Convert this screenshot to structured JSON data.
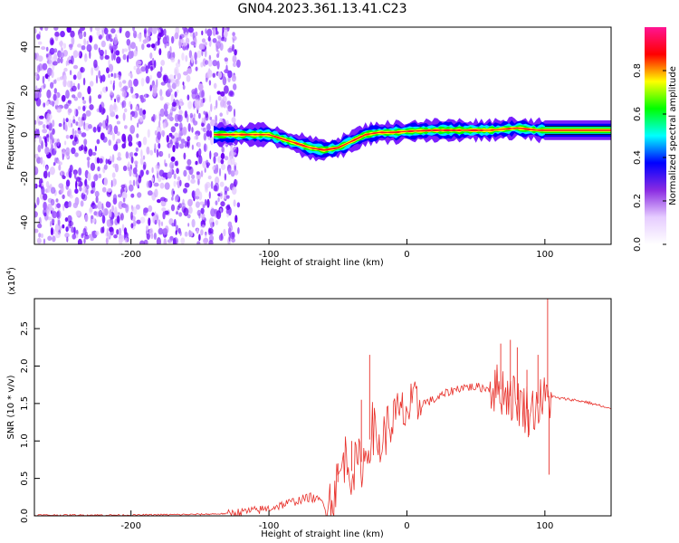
{
  "title": "GN04.2023.361.13.41.C23",
  "chart_data": [
    {
      "type": "heatmap",
      "title": "GN04.2023.361.13.41.C23",
      "xlabel": "Height of straight line (km)",
      "ylabel": "Frequency (Hz)",
      "xlim": [
        -270,
        148
      ],
      "ylim": [
        -50,
        49
      ],
      "xticks": [
        -200,
        -100,
        0,
        100
      ],
      "yticks": [
        -40,
        -20,
        0,
        20,
        40
      ],
      "grid": false,
      "noise_region_x": [
        -270,
        -122
      ],
      "colorbar": {
        "label": "Normalized spectral amplitude",
        "range": [
          0,
          1
        ],
        "ticks": [
          "0.0",
          "0.2",
          "0.4",
          "0.6",
          "0.8"
        ],
        "colormap": [
          "#ffffff",
          "#e6ccff",
          "#8a2be2",
          "#0000ff",
          "#00ffff",
          "#00ff00",
          "#ffff00",
          "#ff0000",
          "#ff1493"
        ]
      },
      "ridge": {
        "x": [
          -140,
          -120,
          -100,
          -90,
          -80,
          -70,
          -60,
          -50,
          -40,
          -30,
          -20,
          -10,
          0,
          20,
          40,
          60,
          80,
          95,
          100,
          148
        ],
        "y": [
          0,
          0,
          0,
          -2,
          -4,
          -6,
          -7,
          -6,
          -3,
          0,
          1,
          1,
          1.5,
          2,
          2,
          2,
          3,
          2,
          2,
          2
        ]
      }
    },
    {
      "type": "line",
      "xlabel": "Height of straight line (km)",
      "ylabel": "SNR (10 * v/v)",
      "multiplier_label": "(x10",
      "multiplier_exp": "4",
      "multiplier_close": ")",
      "xlim": [
        -270,
        148
      ],
      "ylim": [
        0,
        2.9
      ],
      "xticks": [
        -200,
        -100,
        0,
        100
      ],
      "yticks": [
        "0.0",
        "0.5",
        "1.0",
        "1.5",
        "2.0",
        "2.5"
      ],
      "grid": false,
      "series": [
        {
          "color": "#e8302a",
          "x": [
            -270,
            -200,
            -150,
            -130,
            -120,
            -110,
            -100,
            -90,
            -80,
            -70,
            -60,
            -55,
            -50,
            -45,
            -40,
            -35,
            -30,
            -25,
            -20,
            -15,
            -10,
            -5,
            0,
            10,
            20,
            30,
            40,
            50,
            60,
            65,
            70,
            75,
            80,
            85,
            90,
            95,
            100,
            103,
            110,
            120,
            130,
            140,
            148
          ],
          "y": [
            0.01,
            0.01,
            0.02,
            0.03,
            0.05,
            0.07,
            0.1,
            0.15,
            0.2,
            0.25,
            0.18,
            0.22,
            0.45,
            0.8,
            0.6,
            0.7,
            0.75,
            1.2,
            0.9,
            1.15,
            1.3,
            1.35,
            1.4,
            1.5,
            1.55,
            1.65,
            1.72,
            1.72,
            1.7,
            1.7,
            1.68,
            1.6,
            1.55,
            1.45,
            1.4,
            1.5,
            1.55,
            1.6,
            1.57,
            1.55,
            1.52,
            1.47,
            1.42
          ]
        }
      ],
      "spikes": [
        {
          "x": -27,
          "y": 2.15
        },
        {
          "x": -33,
          "y": 1.55
        },
        {
          "x": -40,
          "y": 1.0
        },
        {
          "x": -50,
          "y": 0.7
        },
        {
          "x": 68,
          "y": 2.3
        },
        {
          "x": 75,
          "y": 2.35
        },
        {
          "x": 80,
          "y": 2.25
        },
        {
          "x": 87,
          "y": 1.95
        },
        {
          "x": 95,
          "y": 2.15
        },
        {
          "x": 102,
          "y": 2.9
        },
        {
          "x": 103,
          "y": 0.55
        },
        {
          "x": 88,
          "y": 1.05
        }
      ]
    }
  ]
}
